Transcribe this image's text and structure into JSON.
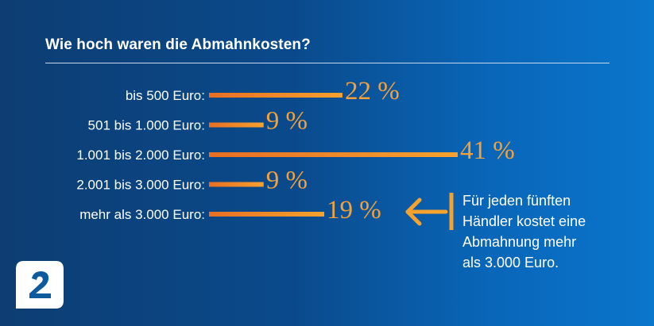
{
  "chart_data": {
    "type": "bar",
    "orientation": "horizontal",
    "title": "Wie hoch waren die Abmahnkosten?",
    "categories": [
      "bis 500 Euro:",
      "501 bis 1.000 Euro:",
      "1.001 bis 2.000 Euro:",
      "2.001 bis 3.000 Euro:",
      "mehr als 3.000 Euro:"
    ],
    "values": [
      22,
      9,
      41,
      9,
      19
    ],
    "value_labels": [
      "22 %",
      "9 %",
      "41 %",
      "9 %",
      "19 %"
    ],
    "xlim": [
      0,
      41
    ],
    "grid": false,
    "legend": "none"
  },
  "annotation": {
    "text": "Für jeden fünften\nHändler kostet eine\nAbmahnung mehr\nals 3.000 Euro.",
    "arrow_icon": "arrow-left-icon"
  },
  "logo": {
    "icon": "brand-logo-icon"
  },
  "colors": {
    "bar_start": "#e86f24",
    "bar_end": "#f5a22e",
    "value_text": "#f3a13a",
    "arrow": "#f5a22e",
    "text": "#ffffff",
    "bg_left": "#0d3d72",
    "bg_right": "#0a76cc"
  }
}
